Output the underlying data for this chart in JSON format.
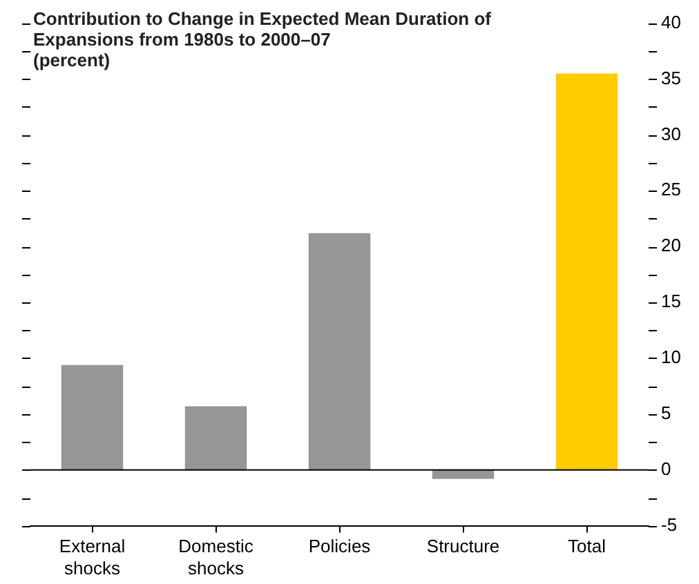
{
  "chart_data": {
    "type": "bar",
    "title": "Contribution to Change in Expected Mean Duration of Expansions from 1980s to 2000–07",
    "subtitle": "(percent)",
    "categories": [
      "External shocks",
      "Domestic shocks",
      "Policies",
      "Structure",
      "Total"
    ],
    "values": [
      9.4,
      5.7,
      21.2,
      -0.8,
      35.5
    ],
    "colors": [
      "#969696",
      "#969696",
      "#969696",
      "#969696",
      "#ffcc00"
    ],
    "ylim": [
      -5,
      40
    ],
    "yticks": [
      -5,
      {
        "value": -2.5,
        "label": null
      },
      0,
      {
        "value": 2.5,
        "label": null
      },
      5,
      {
        "value": 7.5,
        "label": null
      },
      10,
      {
        "value": 12.5,
        "label": null
      },
      15,
      {
        "value": 17.5,
        "label": null
      },
      20,
      {
        "value": 22.5,
        "label": null
      },
      25,
      {
        "value": 27.5,
        "label": null
      },
      30,
      {
        "value": 32.5,
        "label": null
      },
      35,
      {
        "value": 37.5,
        "label": null
      },
      40
    ],
    "legend": false
  }
}
